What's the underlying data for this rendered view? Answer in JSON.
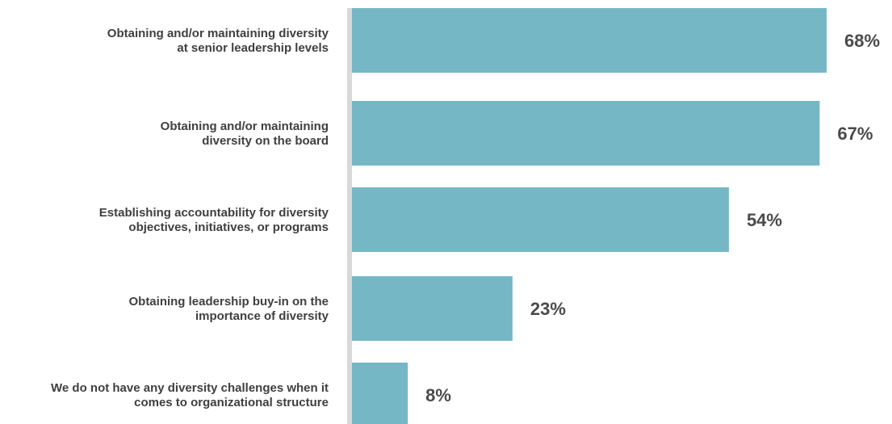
{
  "chart_data": {
    "type": "bar",
    "orientation": "horizontal",
    "categories": [
      [
        "Obtaining and/or maintaining diversity",
        "at senior leadership levels"
      ],
      [
        "Obtaining and/or maintaining",
        "diversity on the board"
      ],
      [
        "Establishing accountability for diversity",
        "objectives, initiatives, or programs"
      ],
      [
        "Obtaining leadership buy-in on the",
        "importance of diversity"
      ],
      [
        "We do not have any diversity challenges when it",
        "comes to organizational structure"
      ]
    ],
    "values": [
      68,
      67,
      54,
      23,
      8
    ],
    "value_labels": [
      "68%",
      "67%",
      "54%",
      "23%",
      "8%"
    ],
    "unit": "%",
    "xlim": [
      0,
      68
    ],
    "grid": false,
    "legend": "none",
    "colors": {
      "bar": "#76b7c5",
      "axis": "#d9d9d9",
      "label_text": "#3f3f3f",
      "value_text": "#4a4a4a"
    }
  }
}
